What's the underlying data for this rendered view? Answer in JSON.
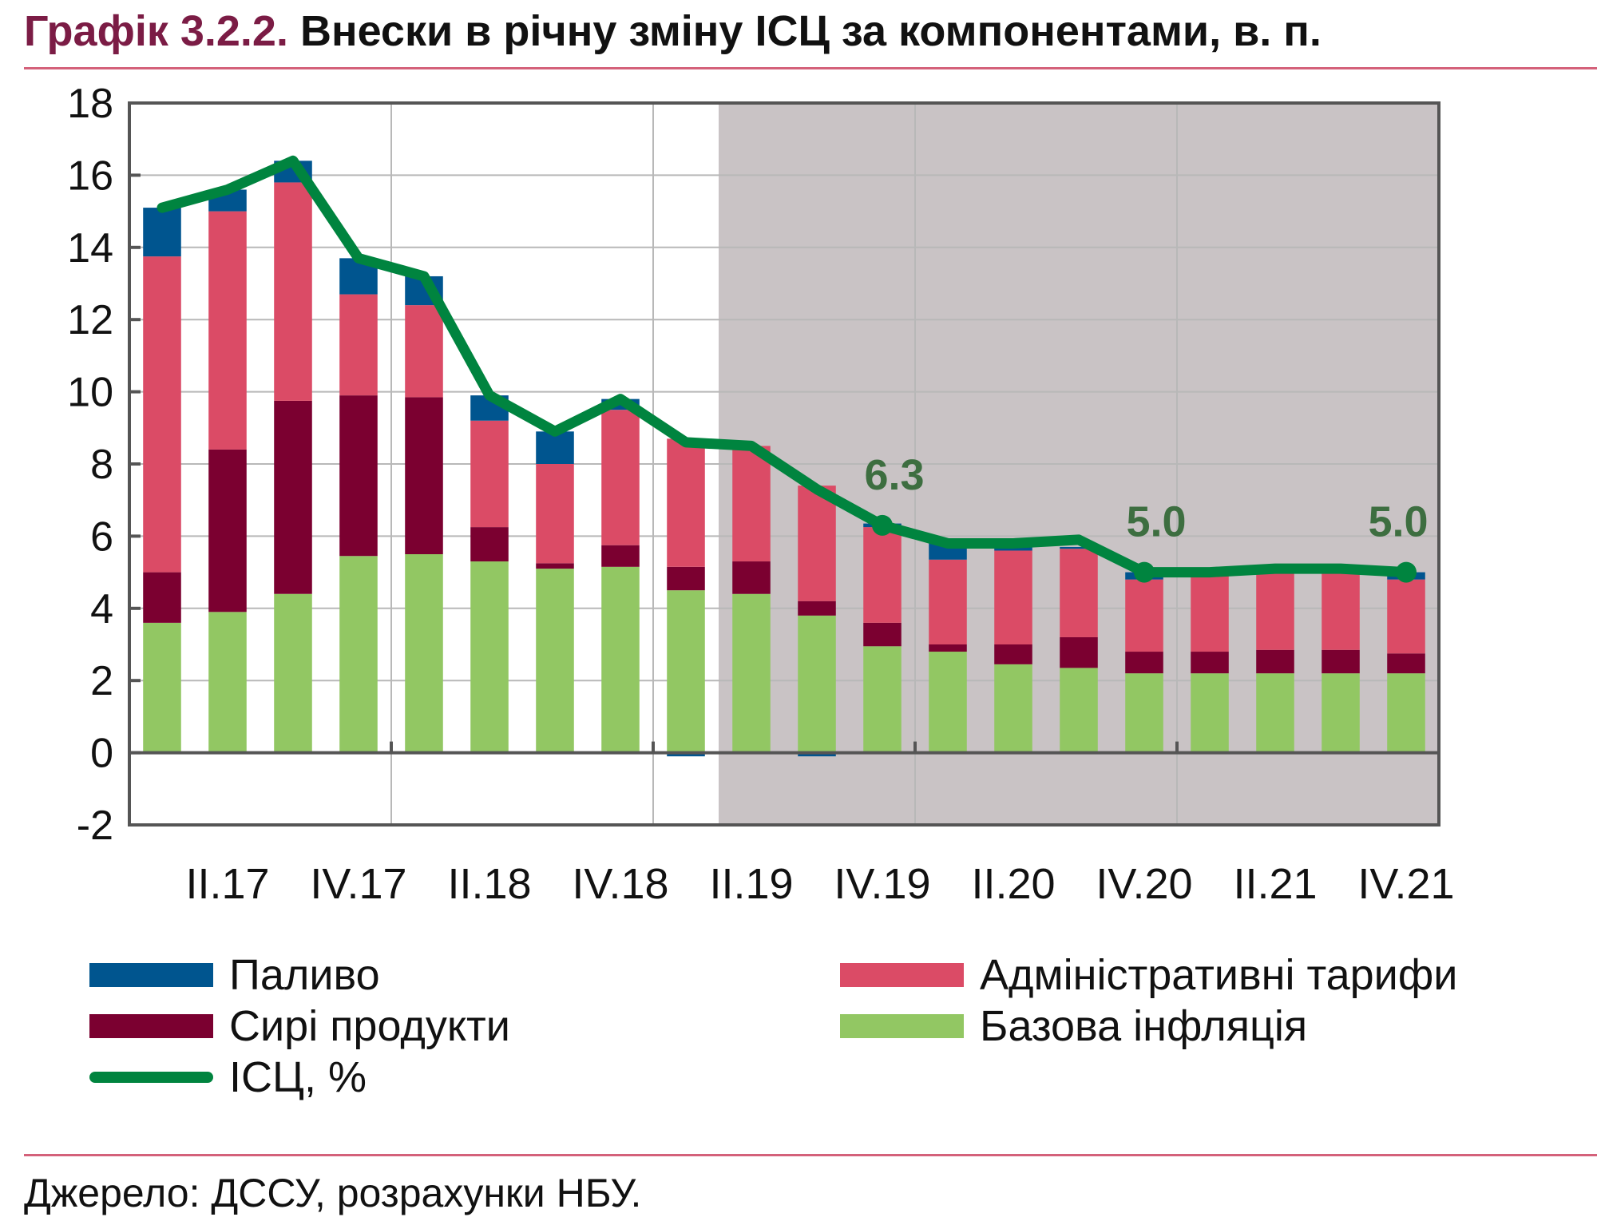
{
  "title": {
    "number": "Графік 3.2.2.",
    "text": "Внески в річну зміну ІСЦ за компонентами, в. п."
  },
  "source": "Джерело: ДССУ, розрахунки НБУ.",
  "colors": {
    "fuel": "#00558f",
    "raw_food": "#7b0030",
    "admin": "#db4b66",
    "core": "#92c763",
    "cpi": "#00843f",
    "forecast_shade": "#c9c3c5",
    "annotation": "#3d6e40"
  },
  "chart_data": {
    "type": "bar",
    "stacked": true,
    "categories": [
      "I.17",
      "II.17",
      "III.17",
      "IV.17",
      "I.18",
      "II.18",
      "III.18",
      "IV.18",
      "I.19",
      "II.19",
      "III.19",
      "IV.19",
      "I.20",
      "II.20",
      "III.20",
      "IV.20",
      "I.21",
      "II.21",
      "III.21",
      "IV.21"
    ],
    "tick_labels": [
      "II.17",
      "IV.17",
      "II.18",
      "IV.18",
      "II.19",
      "IV.19",
      "II.20",
      "IV.20",
      "II.21",
      "IV.21"
    ],
    "ylim": [
      -2,
      18
    ],
    "yticks": [
      -2,
      0,
      2,
      4,
      6,
      8,
      10,
      12,
      14,
      16,
      18
    ],
    "grid": true,
    "forecast_from": "II.19",
    "series": [
      {
        "name": "Базова інфляція",
        "key": "core",
        "values": [
          3.6,
          3.9,
          4.4,
          5.45,
          5.5,
          5.3,
          5.1,
          5.15,
          4.5,
          4.4,
          3.8,
          2.95,
          2.8,
          2.45,
          2.35,
          2.2,
          2.2,
          2.2,
          2.2,
          2.2
        ]
      },
      {
        "name": "Сирі продукти",
        "key": "raw_food",
        "values": [
          1.4,
          4.5,
          5.35,
          4.45,
          4.35,
          0.95,
          0.15,
          0.6,
          0.65,
          0.9,
          0.4,
          0.65,
          0.2,
          0.55,
          0.85,
          0.6,
          0.6,
          0.65,
          0.65,
          0.55
        ]
      },
      {
        "name": "Адміністративні тарифи",
        "key": "admin",
        "values": [
          8.75,
          6.6,
          6.05,
          2.8,
          2.55,
          2.95,
          2.75,
          3.75,
          3.55,
          3.2,
          3.2,
          2.65,
          2.35,
          2.6,
          2.45,
          2.0,
          2.2,
          2.25,
          2.3,
          2.05
        ]
      },
      {
        "name": "Паливо",
        "key": "fuel",
        "values": [
          1.35,
          0.6,
          0.6,
          1.0,
          0.8,
          0.7,
          0.9,
          0.3,
          -0.1,
          0.0,
          -0.1,
          0.1,
          0.45,
          0.1,
          0.05,
          0.2,
          0.0,
          0.0,
          0.0,
          0.2
        ]
      }
    ],
    "line": {
      "name": "ІСЦ, %",
      "values": [
        15.1,
        15.6,
        16.4,
        13.7,
        13.2,
        9.9,
        8.9,
        9.8,
        8.6,
        8.5,
        7.3,
        6.3,
        5.8,
        5.8,
        5.9,
        5.0,
        5.0,
        5.1,
        5.1,
        5.0
      ]
    },
    "annotations": [
      {
        "category": "IV.19",
        "text": "6.3"
      },
      {
        "category": "IV.20",
        "text": "5.0"
      },
      {
        "category": "IV.21",
        "text": "5.0"
      }
    ]
  },
  "legend": [
    {
      "key": "fuel",
      "label": "Паливо"
    },
    {
      "key": "admin",
      "label": "Адміністративні тарифи"
    },
    {
      "key": "raw_food",
      "label": "Сирі продукти"
    },
    {
      "key": "core",
      "label": "Базова інфляція"
    },
    {
      "key": "cpi",
      "label": "ІСЦ, %"
    }
  ]
}
